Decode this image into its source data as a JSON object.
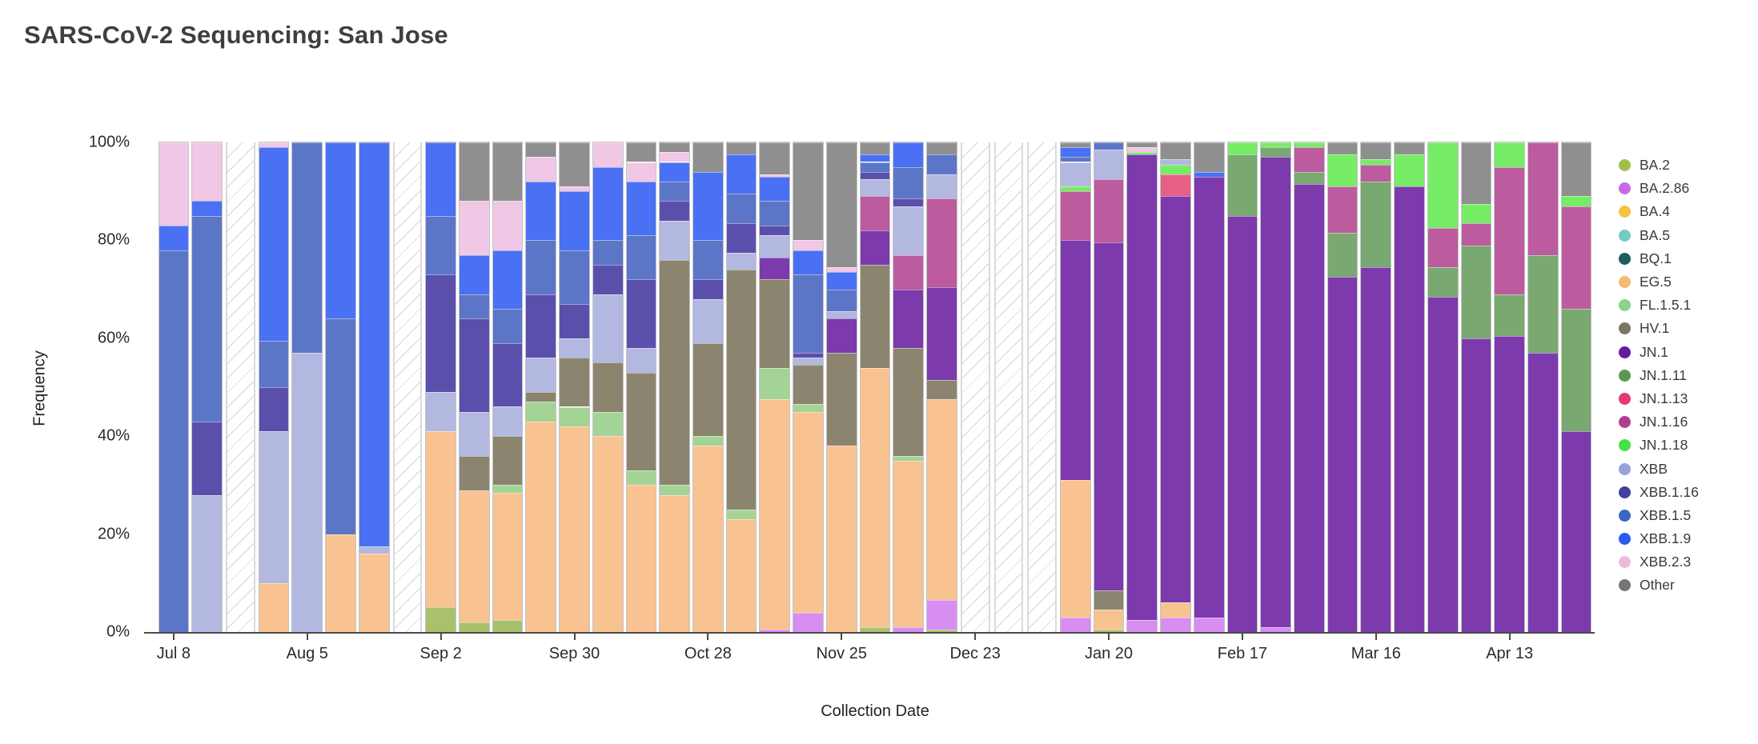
{
  "title": "SARS-CoV-2 Sequencing: San Jose",
  "x_axis": {
    "label": "Collection Date",
    "ticks": [
      {
        "index": 0,
        "label": "Jul 8"
      },
      {
        "index": 4,
        "label": "Aug 5"
      },
      {
        "index": 8,
        "label": "Sep 2"
      },
      {
        "index": 12,
        "label": "Sep 30"
      },
      {
        "index": 16,
        "label": "Oct 28"
      },
      {
        "index": 20,
        "label": "Nov 25"
      },
      {
        "index": 24,
        "label": "Dec 23"
      },
      {
        "index": 28,
        "label": "Jan 20"
      },
      {
        "index": 32,
        "label": "Feb 17"
      },
      {
        "index": 36,
        "label": "Mar 16"
      },
      {
        "index": 40,
        "label": "Apr 13"
      }
    ]
  },
  "y_axis": {
    "label": "Frequency",
    "ticks": [
      {
        "label": "0%",
        "value": 0
      },
      {
        "label": "20%",
        "value": 20
      },
      {
        "label": "40%",
        "value": 40
      },
      {
        "label": "60%",
        "value": 60
      },
      {
        "label": "80%",
        "value": 80
      },
      {
        "label": "100%",
        "value": 100
      }
    ]
  },
  "chart_data": {
    "type": "bar",
    "stacked": true,
    "unit": "percent of sequences",
    "ylim": [
      0,
      100
    ],
    "grid": false,
    "legend_position": "right",
    "stack_order_bottom_to_top": [
      "BA.2",
      "BA.2.86",
      "BA.4",
      "BA.5",
      "BQ.1",
      "EG.5",
      "FL.1.5.1",
      "HV.1",
      "JN.1",
      "JN.1.11",
      "JN.1.13",
      "JN.1.16",
      "JN.1.18",
      "XBB",
      "XBB.1.16",
      "XBB.1.5",
      "XBB.1.9",
      "XBB.2.3",
      "Other"
    ],
    "variants": [
      {
        "name": "BA.2",
        "color": "#a9c16a",
        "dot": "#a2bf4e"
      },
      {
        "name": "BA.2.86",
        "color": "#d78df2",
        "dot": "#c969e6"
      },
      {
        "name": "BA.4",
        "color": "#f7c455",
        "dot": "#f7c141"
      },
      {
        "name": "BA.5",
        "color": "#7fcdc5",
        "dot": "#72ccc3"
      },
      {
        "name": "BQ.1",
        "color": "#23605f",
        "dot": "#1e5e5e"
      },
      {
        "name": "EG.5",
        "color": "#f9c291",
        "dot": "#f8b773"
      },
      {
        "name": "FL.1.5.1",
        "color": "#a4d495",
        "dot": "#8cd388"
      },
      {
        "name": "HV.1",
        "color": "#8b8570",
        "dot": "#7b765f"
      },
      {
        "name": "JN.1",
        "color": "#7c3aad",
        "dot": "#661ba2"
      },
      {
        "name": "JN.1.11",
        "color": "#79a871",
        "dot": "#579b51"
      },
      {
        "name": "JN.1.13",
        "color": "#e85f86",
        "dot": "#e63a6f"
      },
      {
        "name": "JN.1.16",
        "color": "#bc5b9e",
        "dot": "#af3f8c"
      },
      {
        "name": "JN.1.18",
        "color": "#77ec66",
        "dot": "#43e24b"
      },
      {
        "name": "XBB",
        "color": "#b2b8e0",
        "dot": "#97a1da"
      },
      {
        "name": "XBB.1.16",
        "color": "#5a50ab",
        "dot": "#453e9e"
      },
      {
        "name": "XBB.1.5",
        "color": "#5c76c7",
        "dot": "#3c64c6"
      },
      {
        "name": "XBB.1.9",
        "color": "#4a71f3",
        "dot": "#2b5af2"
      },
      {
        "name": "XBB.2.3",
        "color": "#f0c7e4",
        "dot": "#f2bada"
      },
      {
        "name": "Other",
        "color": "#8f8f8f",
        "dot": "#757575"
      }
    ],
    "missing_data_slots": [
      "Jul 22",
      "Aug 26",
      "Dec 23",
      "Dec 30",
      "Jan 6"
    ],
    "bars": [
      {
        "date": "Jul 8",
        "segments": {
          "XBB.1.5": 78,
          "XBB.1.9": 5,
          "XBB.2.3": 17
        }
      },
      {
        "date": "Jul 15",
        "segments": {
          "XBB": 28,
          "XBB.1.16": 15,
          "XBB.1.5": 42,
          "XBB.1.9": 3,
          "XBB.2.3": 12
        }
      },
      {
        "date": "Jul 22",
        "missing": true
      },
      {
        "date": "Jul 29",
        "segments": {
          "EG.5": 10,
          "XBB": 31,
          "XBB.1.16": 9,
          "XBB.1.5": 9.5,
          "XBB.1.9": 39.5,
          "XBB.2.3": 1
        }
      },
      {
        "date": "Aug 5",
        "segments": {
          "XBB": 57,
          "XBB.1.5": 43
        }
      },
      {
        "date": "Aug 12",
        "segments": {
          "EG.5": 20,
          "XBB.1.5": 44,
          "XBB.1.9": 36
        }
      },
      {
        "date": "Aug 19",
        "segments": {
          "EG.5": 16,
          "XBB": 1.5,
          "XBB.1.9": 82.5
        }
      },
      {
        "date": "Aug 26",
        "missing": true
      },
      {
        "date": "Sep 2",
        "segments": {
          "BA.2": 5,
          "EG.5": 36,
          "XBB": 8,
          "XBB.1.16": 24,
          "XBB.1.5": 12,
          "XBB.1.9": 15
        }
      },
      {
        "date": "Sep 9",
        "segments": {
          "BA.2": 2,
          "EG.5": 27,
          "HV.1": 7,
          "XBB": 9,
          "XBB.1.16": 19,
          "XBB.1.5": 5,
          "XBB.1.9": 8,
          "XBB.2.3": 11,
          "Other": 12
        }
      },
      {
        "date": "Sep 16",
        "segments": {
          "BA.2": 2.5,
          "EG.5": 26,
          "FL.1.5.1": 1.5,
          "HV.1": 10,
          "XBB": 6,
          "XBB.1.16": 13,
          "XBB.1.5": 7,
          "XBB.1.9": 12,
          "XBB.2.3": 10,
          "Other": 12
        }
      },
      {
        "date": "Sep 23",
        "segments": {
          "EG.5": 43,
          "FL.1.5.1": 4,
          "HV.1": 2,
          "XBB": 7,
          "XBB.1.16": 13,
          "XBB.1.5": 11,
          "XBB.1.9": 12,
          "XBB.2.3": 5,
          "Other": 3
        }
      },
      {
        "date": "Sep 30",
        "segments": {
          "EG.5": 42,
          "FL.1.5.1": 4,
          "HV.1": 10,
          "XBB": 4,
          "XBB.1.16": 7,
          "XBB.1.5": 11,
          "XBB.1.9": 12,
          "XBB.2.3": 1,
          "Other": 9
        }
      },
      {
        "date": "Oct 7",
        "segments": {
          "EG.5": 40,
          "FL.1.5.1": 5,
          "HV.1": 10,
          "XBB": 14,
          "XBB.1.16": 6,
          "XBB.1.5": 5,
          "XBB.1.9": 15,
          "XBB.2.3": 5
        }
      },
      {
        "date": "Oct 14",
        "segments": {
          "EG.5": 30,
          "FL.1.5.1": 3,
          "HV.1": 20,
          "XBB": 5,
          "XBB.1.16": 14,
          "XBB.1.5": 9,
          "XBB.1.9": 11,
          "XBB.2.3": 4,
          "Other": 4
        }
      },
      {
        "date": "Oct 21",
        "segments": {
          "EG.5": 28,
          "FL.1.5.1": 2,
          "HV.1": 46,
          "XBB": 8,
          "XBB.1.16": 4,
          "XBB.1.5": 4,
          "XBB.1.9": 4,
          "XBB.2.3": 2,
          "Other": 2
        }
      },
      {
        "date": "Oct 28",
        "segments": {
          "EG.5": 38,
          "FL.1.5.1": 2,
          "HV.1": 19,
          "XBB": 9,
          "XBB.1.16": 4,
          "XBB.1.5": 8,
          "XBB.1.9": 14,
          "Other": 6
        }
      },
      {
        "date": "Nov 4",
        "segments": {
          "EG.5": 23,
          "FL.1.5.1": 2,
          "HV.1": 49,
          "XBB": 3.5,
          "XBB.1.16": 6,
          "XBB.1.5": 6,
          "XBB.1.9": 8,
          "Other": 2.5
        }
      },
      {
        "date": "Nov 11",
        "segments": {
          "BA.2.86": 0.5,
          "EG.5": 47,
          "FL.1.5.1": 6.5,
          "HV.1": 18,
          "JN.1": 4.5,
          "XBB": 4.5,
          "XBB.1.16": 2,
          "XBB.1.5": 5,
          "XBB.1.9": 5,
          "XBB.2.3": 0.5,
          "Other": 6.5
        }
      },
      {
        "date": "Nov 18",
        "segments": {
          "BA.2.86": 4,
          "EG.5": 41,
          "FL.1.5.1": 1.5,
          "HV.1": 8,
          "XBB": 1.5,
          "XBB.1.16": 1,
          "XBB.1.5": 16,
          "XBB.1.9": 5,
          "XBB.2.3": 2,
          "Other": 20
        }
      },
      {
        "date": "Nov 25",
        "segments": {
          "EG.5": 38,
          "HV.1": 19,
          "JN.1": 7,
          "XBB": 1.5,
          "XBB.1.5": 4.5,
          "XBB.1.9": 3.5,
          "XBB.2.3": 1,
          "Other": 25.5
        }
      },
      {
        "date": "Dec 2",
        "segments": {
          "BA.2": 1,
          "EG.5": 53,
          "HV.1": 21,
          "JN.1": 7,
          "JN.1.16": 7,
          "XBB": 3.5,
          "XBB.1.16": 1.5,
          "XBB.1.5": 2,
          "XBB.1.9": 1.5,
          "Other": 2.5
        }
      },
      {
        "date": "Dec 9",
        "segments": {
          "BA.2.86": 1,
          "EG.5": 34,
          "FL.1.5.1": 1,
          "HV.1": 22,
          "JN.1": 12,
          "JN.1.16": 7,
          "XBB": 10,
          "XBB.1.16": 1.5,
          "XBB.1.5": 6.5,
          "XBB.1.9": 5
        }
      },
      {
        "date": "Dec 16",
        "segments": {
          "BA.2": 0.5,
          "BA.2.86": 6,
          "EG.5": 41,
          "HV.1": 4,
          "JN.1": 19,
          "JN.1.16": 18,
          "XBB": 5,
          "XBB.1.5": 4,
          "Other": 2.5
        }
      },
      {
        "date": "Dec 23",
        "missing": true
      },
      {
        "date": "Dec 30",
        "missing": true
      },
      {
        "date": "Jan 6",
        "missing": true
      },
      {
        "date": "Jan 13",
        "segments": {
          "BA.2.86": 3,
          "EG.5": 28,
          "JN.1": 49,
          "JN.1.16": 10,
          "JN.1.18": 1,
          "XBB": 5,
          "XBB.1.5": 1,
          "XBB.1.9": 2,
          "Other": 1
        }
      },
      {
        "date": "Jan 20",
        "segments": {
          "BA.2": 0.5,
          "EG.5": 4,
          "HV.1": 4,
          "JN.1": 71,
          "JN.1.16": 13,
          "XBB": 6,
          "XBB.1.5": 1.5
        }
      },
      {
        "date": "Jan 27",
        "segments": {
          "BA.2.86": 2.5,
          "JN.1": 95,
          "JN.1.18": 0.5,
          "XBB.2.3": 1,
          "Other": 1
        }
      },
      {
        "date": "Feb 3",
        "segments": {
          "BA.2.86": 3,
          "EG.5": 3,
          "JN.1": 83,
          "JN.1.13": 4.5,
          "JN.1.18": 2,
          "XBB": 1,
          "Other": 3.5
        }
      },
      {
        "date": "Feb 10",
        "segments": {
          "BA.2.86": 3,
          "JN.1": 90,
          "XBB.1.9": 1,
          "Other": 6
        }
      },
      {
        "date": "Feb 17",
        "segments": {
          "JN.1": 85,
          "JN.1.11": 12.5,
          "JN.1.18": 2.5
        }
      },
      {
        "date": "Feb 24",
        "segments": {
          "BA.2.86": 1,
          "JN.1": 96,
          "JN.1.11": 2,
          "JN.1.18": 1
        }
      },
      {
        "date": "Mar 2",
        "segments": {
          "JN.1": 91.5,
          "JN.1.11": 2.5,
          "JN.1.16": 5,
          "JN.1.18": 1
        }
      },
      {
        "date": "Mar 9",
        "segments": {
          "JN.1": 72.5,
          "JN.1.11": 9,
          "JN.1.16": 9.5,
          "JN.1.18": 6.5,
          "Other": 2.5
        }
      },
      {
        "date": "Mar 16",
        "segments": {
          "JN.1": 74.5,
          "JN.1.11": 17.5,
          "JN.1.16": 3.5,
          "JN.1.18": 1,
          "Other": 3.5
        }
      },
      {
        "date": "Mar 23",
        "segments": {
          "JN.1": 91,
          "JN.1.18": 6.5,
          "Other": 2.5
        }
      },
      {
        "date": "Mar 30",
        "segments": {
          "JN.1": 68.5,
          "JN.1.11": 6,
          "JN.1.16": 8,
          "JN.1.18": 17.5
        }
      },
      {
        "date": "Apr 6",
        "segments": {
          "JN.1": 60,
          "JN.1.11": 19,
          "JN.1.16": 4.5,
          "JN.1.18": 4,
          "Other": 12.5
        }
      },
      {
        "date": "Apr 13",
        "segments": {
          "JN.1": 60.5,
          "JN.1.11": 8.5,
          "JN.1.16": 26,
          "JN.1.18": 5
        }
      },
      {
        "date": "Apr 20",
        "segments": {
          "JN.1": 57,
          "JN.1.11": 20,
          "JN.1.16": 23
        }
      },
      {
        "date": "Apr 27",
        "segments": {
          "JN.1": 41,
          "JN.1.11": 25,
          "JN.1.16": 21,
          "JN.1.18": 2,
          "Other": 11
        }
      }
    ]
  }
}
